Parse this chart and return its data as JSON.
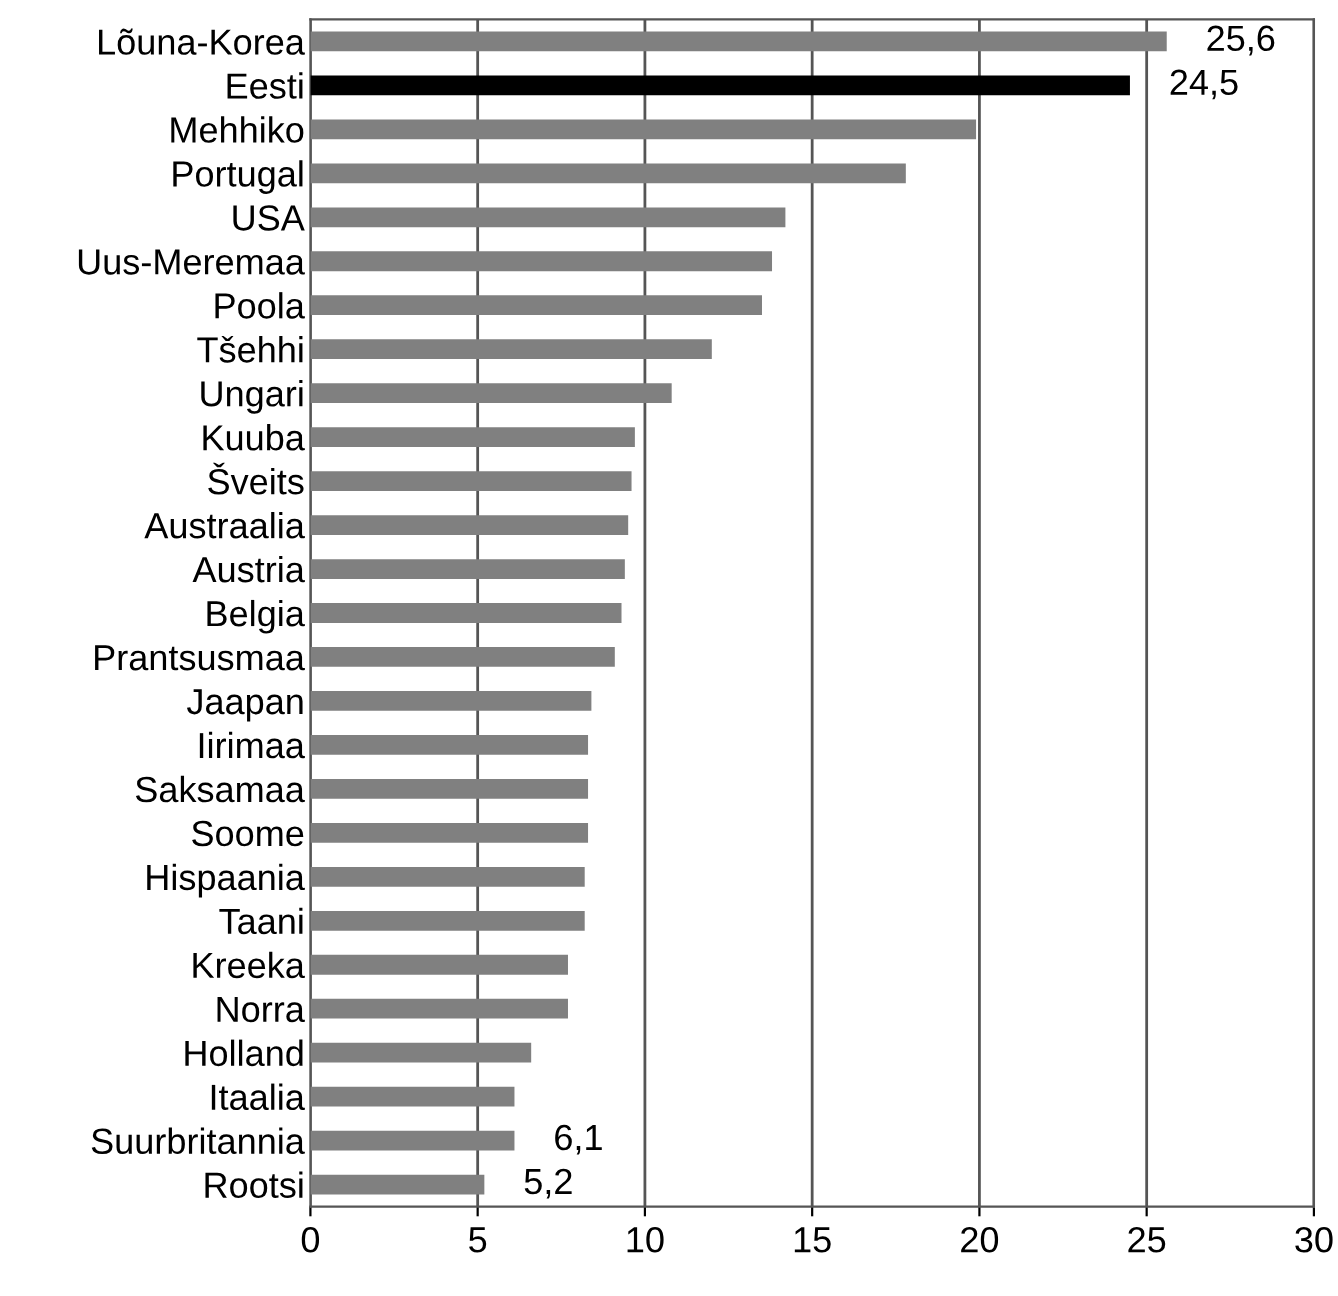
{
  "chart_data": {
    "type": "bar",
    "orientation": "horizontal",
    "categories": [
      "Lõuna-Korea",
      "Eesti",
      "Mehhiko",
      "Portugal",
      "USA",
      "Uus-Meremaa",
      "Poola",
      "Tšehhi",
      "Ungari",
      "Kuuba",
      "Šveits",
      "Austraalia",
      "Austria",
      "Belgia",
      "Prantsusmaa",
      "Jaapan",
      "Iirimaa",
      "Saksamaa",
      "Soome",
      "Hispaania",
      "Taani",
      "Kreeka",
      "Norra",
      "Holland",
      "Itaalia",
      "Suurbritannia",
      "Rootsi"
    ],
    "values": [
      25.6,
      24.5,
      19.9,
      17.8,
      14.2,
      13.8,
      13.5,
      12.0,
      10.8,
      9.7,
      9.6,
      9.5,
      9.4,
      9.3,
      9.1,
      8.4,
      8.3,
      8.3,
      8.3,
      8.2,
      8.2,
      7.7,
      7.7,
      6.6,
      6.1,
      6.1,
      5.2
    ],
    "colors": [
      "#808080",
      "#000000",
      "#808080",
      "#808080",
      "#808080",
      "#808080",
      "#808080",
      "#808080",
      "#808080",
      "#808080",
      "#808080",
      "#808080",
      "#808080",
      "#808080",
      "#808080",
      "#808080",
      "#808080",
      "#808080",
      "#808080",
      "#808080",
      "#808080",
      "#808080",
      "#808080",
      "#808080",
      "#808080",
      "#808080",
      "#808080"
    ],
    "value_labels": [
      "25,6",
      "24,5",
      null,
      null,
      null,
      null,
      null,
      null,
      null,
      null,
      null,
      null,
      null,
      null,
      null,
      null,
      null,
      null,
      null,
      null,
      null,
      null,
      null,
      null,
      null,
      "6,1",
      "5,2"
    ],
    "xlim": [
      0,
      30
    ],
    "xticks": [
      0,
      5,
      10,
      15,
      20,
      25,
      30
    ],
    "grid": "x"
  }
}
